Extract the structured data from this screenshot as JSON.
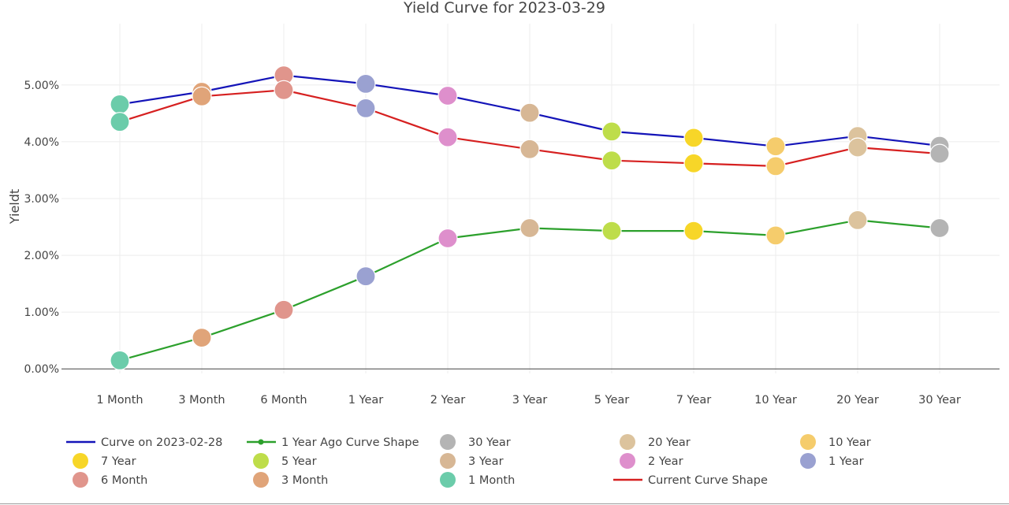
{
  "chart_data": {
    "type": "line",
    "title": "Yield Curve for 2023-03-29",
    "ylabel": "Yieldt",
    "xlabel": "",
    "categories": [
      "1 Month",
      "3 Month",
      "6 Month",
      "1 Year",
      "2 Year",
      "3 Year",
      "5 Year",
      "7 Year",
      "10 Year",
      "20 Year",
      "30 Year"
    ],
    "ylim": [
      -0.0008,
      0.0608
    ],
    "yticks": [
      0,
      0.01,
      0.02,
      0.03,
      0.04,
      0.05
    ],
    "ytick_labels": [
      "0.00%",
      "1.00%",
      "2.00%",
      "3.00%",
      "4.00%",
      "5.00%"
    ],
    "grid": true,
    "legend_position": "bottom",
    "series": [
      {
        "name": "Curve on 2023-02-28",
        "kind": "line",
        "color": "#1414b8",
        "values": [
          0.0466,
          0.0488,
          0.0517,
          0.0502,
          0.0481,
          0.0451,
          0.0418,
          0.0407,
          0.0392,
          0.041,
          0.0393
        ]
      },
      {
        "name": "1 Year Ago Curve Shape",
        "kind": "line-markers",
        "color": "#2ca02c",
        "values": [
          0.0015,
          0.0055,
          0.0104,
          0.0163,
          0.023,
          0.0248,
          0.0243,
          0.0243,
          0.0235,
          0.0262,
          0.0248
        ]
      },
      {
        "name": "Current Curve Shape",
        "kind": "line",
        "color": "#d62020",
        "values": [
          0.0435,
          0.048,
          0.0491,
          0.0459,
          0.0408,
          0.0387,
          0.0367,
          0.0362,
          0.0357,
          0.039,
          0.0379
        ]
      }
    ],
    "marker_colors": {
      "1 Month": "#6bccaa",
      "3 Month": "#e0a479",
      "6 Month": "#e0958c",
      "1 Year": "#9aa1d1",
      "2 Year": "#de8fcc",
      "3 Year": "#d7b795",
      "5 Year": "#bedd4a",
      "7 Year": "#f7d628",
      "10 Year": "#f5cc6c",
      "20 Year": "#dcc39d",
      "30 Year": "#b4b4b4"
    },
    "legend": [
      {
        "label": "Curve on 2023-02-28",
        "kind": "line",
        "color": "#1414b8"
      },
      {
        "label": "1 Year Ago Curve Shape",
        "kind": "line-markers",
        "color": "#2ca02c"
      },
      {
        "label": "30 Year",
        "kind": "marker",
        "color": "#b4b4b4"
      },
      {
        "label": "20 Year",
        "kind": "marker",
        "color": "#dcc39d"
      },
      {
        "label": "10 Year",
        "kind": "marker",
        "color": "#f5cc6c"
      },
      {
        "label": "7 Year",
        "kind": "marker",
        "color": "#f7d628"
      },
      {
        "label": "5 Year",
        "kind": "marker",
        "color": "#bedd4a"
      },
      {
        "label": "3 Year",
        "kind": "marker",
        "color": "#d7b795"
      },
      {
        "label": "2 Year",
        "kind": "marker",
        "color": "#de8fcc"
      },
      {
        "label": "1 Year",
        "kind": "marker",
        "color": "#9aa1d1"
      },
      {
        "label": "6 Month",
        "kind": "marker",
        "color": "#e0958c"
      },
      {
        "label": "3 Month",
        "kind": "marker",
        "color": "#e0a479"
      },
      {
        "label": "1 Month",
        "kind": "marker",
        "color": "#6bccaa"
      },
      {
        "label": "Current Curve Shape",
        "kind": "line",
        "color": "#d62020"
      }
    ]
  }
}
